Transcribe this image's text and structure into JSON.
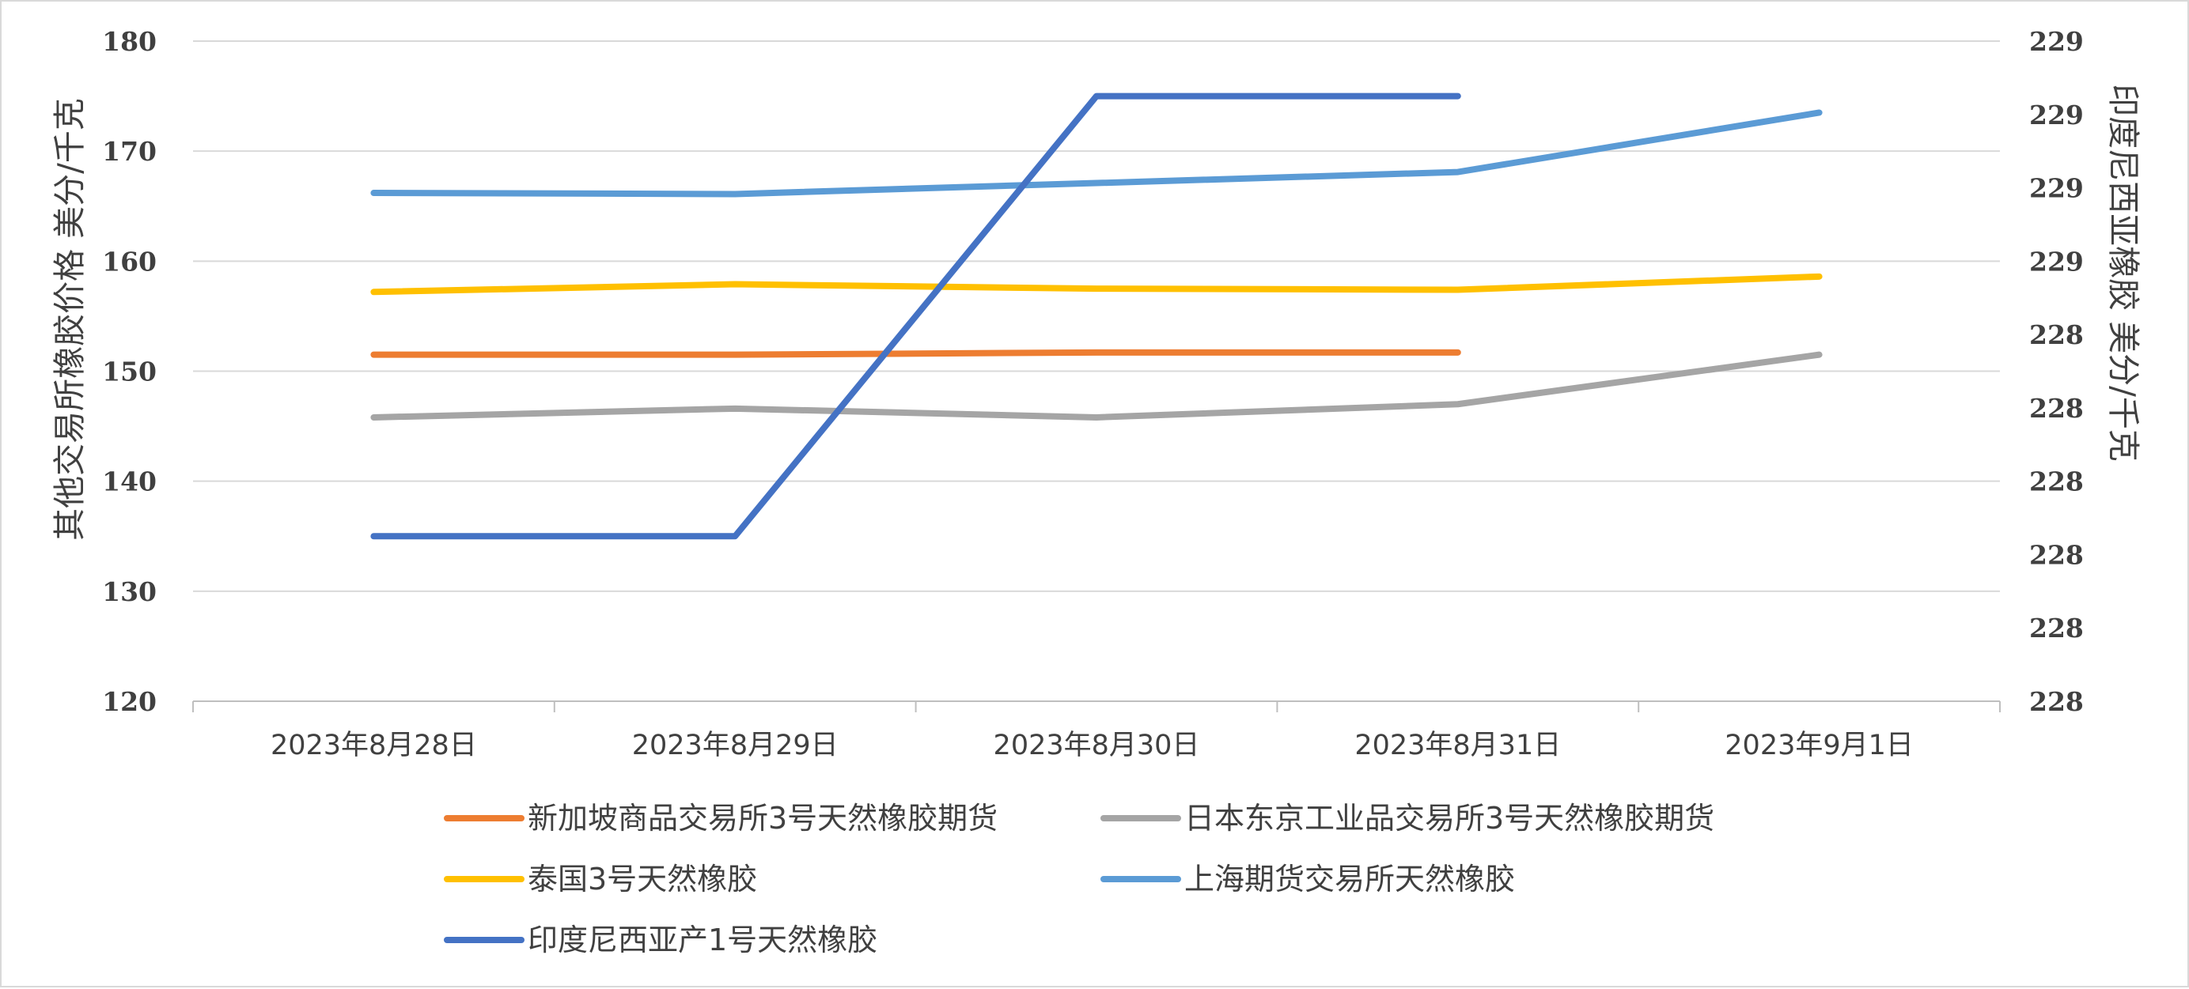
{
  "chart_data": {
    "type": "line",
    "x": [
      "2023年8月28日",
      "2023年8月29日",
      "2023年8月30日",
      "2023年8月31日",
      "2023年9月1日"
    ],
    "ylabel": "其他交易所橡胶价格   美分/千克",
    "ylim": [
      120,
      180
    ],
    "yticks": [
      120,
      130,
      140,
      150,
      160,
      170,
      180
    ],
    "y2label": "印度尼西亚橡胶   美分/千克",
    "y2ticks": [
      "228",
      "228",
      "228",
      "228",
      "228",
      "228",
      "229",
      "229",
      "229",
      "229"
    ],
    "grid": true,
    "legend_position": "bottom",
    "series": [
      {
        "name": "新加坡商品交易所3号天然橡胶期货",
        "axis": "left",
        "color": "#ED7D31",
        "values": [
          151.5,
          151.5,
          151.7,
          151.7,
          null
        ]
      },
      {
        "name": "日本东京工业品交易所3号天然橡胶期货",
        "axis": "left",
        "color": "#A5A5A5",
        "values": [
          145.8,
          146.6,
          145.8,
          147.0,
          151.5
        ]
      },
      {
        "name": "泰国3号天然橡胶",
        "axis": "left",
        "color": "#FFC000",
        "values": [
          157.2,
          157.9,
          157.5,
          157.4,
          158.6
        ]
      },
      {
        "name": "上海期货交易所天然橡胶",
        "axis": "left",
        "color": "#5B9BD5",
        "values": [
          166.2,
          166.1,
          167.1,
          168.1,
          173.5
        ]
      },
      {
        "name": "印度尼西亚产1号天然橡胶",
        "axis": "right",
        "color": "#4472C4",
        "values": [
          228.2,
          228.2,
          229.0,
          229.0,
          null
        ],
        "y2lim": [
          227.9,
          229.1
        ]
      }
    ]
  }
}
